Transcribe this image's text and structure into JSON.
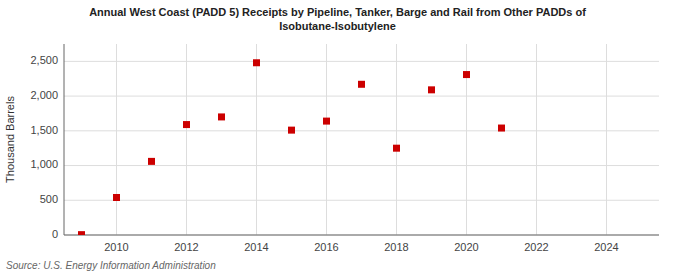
{
  "chart_data": {
    "type": "scatter",
    "title": "Annual West Coast (PADD 5) Receipts by Pipeline, Tanker, Barge and Rail from Other PADDs of\nIsobutane-Isobutylene",
    "y_label": "Thousand Barrels",
    "annotations": [
      "Source: U.S. Energy Information Administration"
    ],
    "x": [
      2009,
      2010,
      2011,
      2012,
      2013,
      2014,
      2015,
      2016,
      2017,
      2018,
      2019,
      2020,
      2021
    ],
    "values": [
      5,
      540,
      1060,
      1590,
      1700,
      2480,
      1510,
      1640,
      2170,
      1250,
      2090,
      2310,
      1540
    ],
    "color": "#cc0000",
    "marker": "square",
    "xlim": [
      2008.5,
      2025.5
    ],
    "ylim": [
      0,
      2750
    ],
    "xticks": [
      2010,
      2012,
      2014,
      2016,
      2018,
      2020,
      2022,
      2024
    ],
    "yticks": [
      0,
      500,
      {
        "value": 1000,
        "label": "1,000"
      },
      {
        "value": 1500,
        "label": "1,500"
      },
      {
        "value": 2000,
        "label": "2,000"
      },
      {
        "value": 2500,
        "label": "2,500"
      }
    ],
    "grid": true
  }
}
